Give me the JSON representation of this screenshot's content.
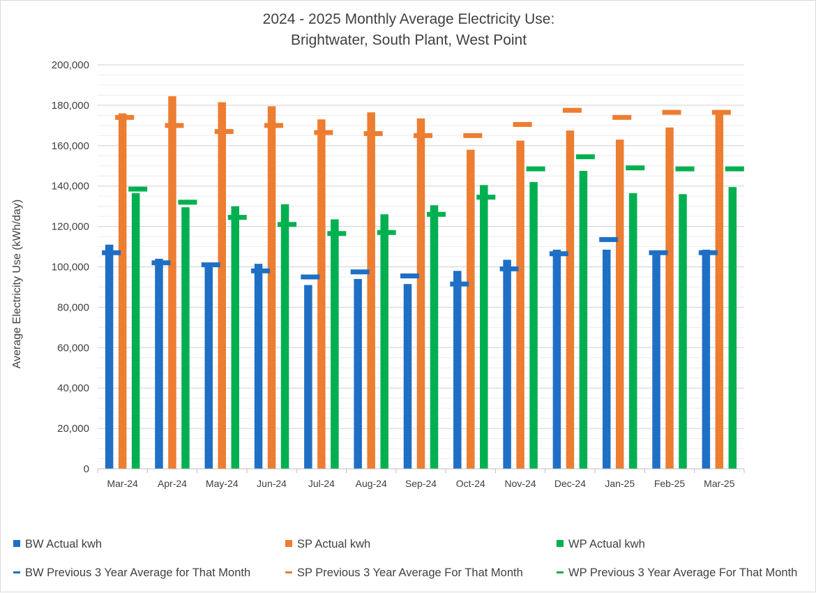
{
  "chart_data": {
    "type": "bar",
    "title": [
      "2024 - 2025 Monthly Average Electricity Use:",
      "Brightwater, South Plant, West Point"
    ],
    "xlabel": "",
    "ylabel": "Average Electricity Use (kWh/day)",
    "ylim": [
      0,
      200000
    ],
    "y_ticks": [
      0,
      20000,
      40000,
      60000,
      80000,
      100000,
      120000,
      140000,
      160000,
      180000,
      200000
    ],
    "y_tick_labels": [
      "0",
      "20,000",
      "40,000",
      "60,000",
      "80,000",
      "100,000",
      "120,000",
      "140,000",
      "160,000",
      "180,000",
      "200,000"
    ],
    "grid": true,
    "legend_position": "bottom",
    "categories": [
      "Mar-24",
      "Apr-24",
      "May-24",
      "Jun-24",
      "Jul-24",
      "Aug-24",
      "Sep-24",
      "Oct-24",
      "Nov-24",
      "Dec-24",
      "Jan-25",
      "Feb-25",
      "Mar-25"
    ],
    "series": [
      {
        "name": "BW Actual kwh",
        "kind": "bar",
        "color": "#1f6fc5",
        "values": [
          111000,
          104000,
          101500,
          101500,
          91000,
          94000,
          91500,
          98000,
          103500,
          108500,
          108500,
          107000,
          108500
        ]
      },
      {
        "name": "SP Actual kwh",
        "kind": "bar",
        "color": "#ed7d31",
        "values": [
          176000,
          184500,
          181500,
          179500,
          173000,
          176500,
          173500,
          158000,
          162500,
          167500,
          163000,
          169000,
          176000
        ]
      },
      {
        "name": "WP Actual kwh",
        "kind": "bar",
        "color": "#00b050",
        "values": [
          136500,
          129500,
          130000,
          131000,
          123500,
          126000,
          130500,
          140500,
          142000,
          147500,
          136500,
          136000,
          139500
        ]
      },
      {
        "name": "BW Previous 3 Year Average for That Month",
        "kind": "marker",
        "color": "#1f6fc5",
        "values": [
          107000,
          102000,
          101000,
          98000,
          95000,
          97500,
          95500,
          91500,
          99000,
          106500,
          113500,
          107000,
          107000
        ]
      },
      {
        "name": "SP Previous 3 Year Average For That Month",
        "kind": "marker",
        "color": "#ed7d31",
        "values": [
          174000,
          170000,
          167000,
          170000,
          166500,
          166000,
          165000,
          165000,
          170500,
          177500,
          174000,
          176500,
          176500
        ]
      },
      {
        "name": "WP Previous 3 Year Average For That Month",
        "kind": "marker",
        "color": "#00b050",
        "values": [
          138500,
          132000,
          124500,
          121000,
          116500,
          117000,
          126000,
          134500,
          148500,
          154500,
          149000,
          148500,
          148500
        ]
      }
    ]
  }
}
